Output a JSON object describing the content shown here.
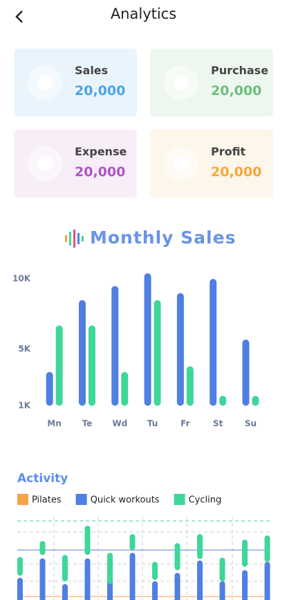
{
  "header": {
    "title": "Analytics"
  },
  "cards": [
    {
      "label": "Sales",
      "value": "20,000",
      "color": "#4aa3e8",
      "bg": "#eaf4fd"
    },
    {
      "label": "Purchase",
      "value": "20,000",
      "color": "#6cbf7a",
      "bg": "#eef7ef"
    },
    {
      "label": "Expense",
      "value": "20,000",
      "color": "#b054c4",
      "bg": "#f8eef8"
    },
    {
      "label": "Profit",
      "value": "20,000",
      "color": "#f3a93a",
      "bg": "#fdf6ea"
    }
  ],
  "chart_data": [
    {
      "type": "bar",
      "title": "Monthly Sales",
      "categories": [
        "Mn",
        "Te",
        "Wd",
        "Tu",
        "Fr",
        "St",
        "Su"
      ],
      "series": [
        {
          "color": "#4f7fe3",
          "values": [
            3400,
            8500,
            9500,
            10400,
            9000,
            10000,
            5700
          ]
        },
        {
          "color": "#3fd69a",
          "values": [
            6700,
            6700,
            3400,
            8500,
            3800,
            1700,
            1700
          ]
        }
      ],
      "ylim": [
        1000,
        10500
      ],
      "yticks": [
        {
          "value": 1000,
          "label": "1K"
        },
        {
          "value": 5000,
          "label": "5K"
        },
        {
          "value": 10000,
          "label": "10K"
        }
      ]
    },
    {
      "type": "range",
      "title": "Activity",
      "ylim": [
        0,
        120
      ],
      "series": [
        {
          "name": "Pilates",
          "color": "#f5a444"
        },
        {
          "name": "Quick workouts",
          "color": "#4f7fe3",
          "low": [
            0,
            0,
            0,
            0,
            0,
            0,
            0,
            0,
            0,
            0,
            0,
            0
          ],
          "high": [
            32,
            60,
            23,
            60,
            40,
            68,
            27,
            39,
            57,
            27,
            43,
            55
          ]
        },
        {
          "name": "Cycling",
          "color": "#3fd69a",
          "low": [
            35,
            65,
            27,
            65,
            23,
            72,
            29,
            43,
            59,
            27,
            48,
            55
          ],
          "high": [
            62,
            85,
            65,
            107,
            68,
            95,
            55,
            82,
            95,
            61,
            87,
            93
          ]
        }
      ]
    }
  ]
}
